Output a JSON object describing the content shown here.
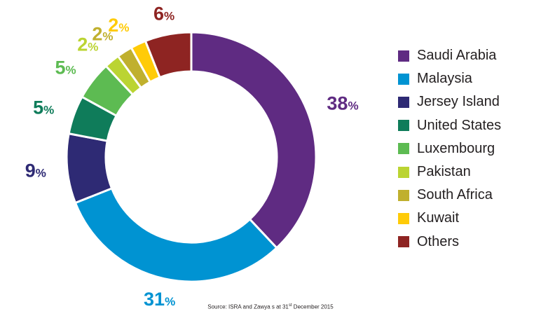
{
  "chart_data": {
    "type": "pie",
    "categories": [
      "Saudi Arabia",
      "Malaysia",
      "Jersey Island",
      "United States",
      "Luxembourg",
      "Pakistan",
      "South Africa",
      "Kuwait",
      "Others"
    ],
    "values": [
      38,
      31,
      9,
      5,
      5,
      2,
      2,
      2,
      6
    ],
    "value_suffix": "%",
    "colors": [
      "#5f2b82",
      "#0093d2",
      "#2e2a74",
      "#0f7c5a",
      "#5dbb52",
      "#bbd432",
      "#c0b02e",
      "#ffcb08",
      "#8e2422"
    ],
    "legend_position": "right"
  },
  "source": {
    "prefix": "Source: ISRA and Zawya s at 31",
    "superscript": "st",
    "suffix": " December 2015"
  }
}
